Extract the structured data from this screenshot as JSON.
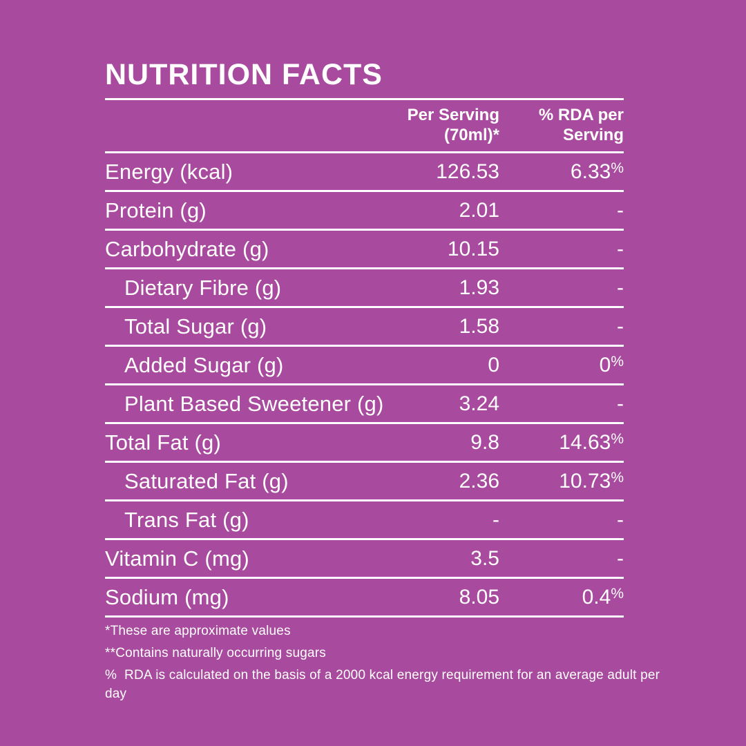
{
  "panel": {
    "title": "NUTRITION FACTS",
    "columns": {
      "serving": "Per Serving\n(70ml)*",
      "rda": "% RDA per\nServing"
    },
    "rows": [
      {
        "label": "Energy (kcal)",
        "serving": "126.53",
        "rda": "6.33%",
        "indent": false
      },
      {
        "label": "Protein (g)",
        "serving": "2.01",
        "rda": "-",
        "indent": false
      },
      {
        "label": "Carbohydrate (g)",
        "serving": "10.15",
        "rda": "-",
        "indent": false
      },
      {
        "label": "Dietary Fibre (g)",
        "serving": "1.93",
        "rda": "-",
        "indent": true
      },
      {
        "label": "Total Sugar (g)",
        "serving": "1.58",
        "rda": "-",
        "indent": true
      },
      {
        "label": "Added Sugar (g)",
        "serving": "0",
        "rda": "0%",
        "indent": true
      },
      {
        "label": "Plant Based Sweetener (g)",
        "serving": "3.24",
        "rda": "-",
        "indent": true
      },
      {
        "label": "Total Fat (g)",
        "serving": "9.8",
        "rda": "14.63%",
        "indent": false
      },
      {
        "label": "Saturated Fat (g)",
        "serving": "2.36",
        "rda": "10.73%",
        "indent": true
      },
      {
        "label": "Trans Fat (g)",
        "serving": "-",
        "rda": "-",
        "indent": true
      },
      {
        "label": "Vitamin C (mg)",
        "serving": "3.5",
        "rda": "-",
        "indent": false
      },
      {
        "label": "Sodium (mg)",
        "serving": "8.05",
        "rda": "0.4%",
        "indent": false
      }
    ],
    "footnotes": [
      "*These are approximate values",
      "**Contains naturally occurring sugars",
      "%  RDA is calculated on the basis of a 2000 kcal energy requirement for an average adult per day"
    ],
    "colors": {
      "background": "#A84A9D",
      "text": "#FFFFFF",
      "rule": "#FFFFFF"
    }
  }
}
